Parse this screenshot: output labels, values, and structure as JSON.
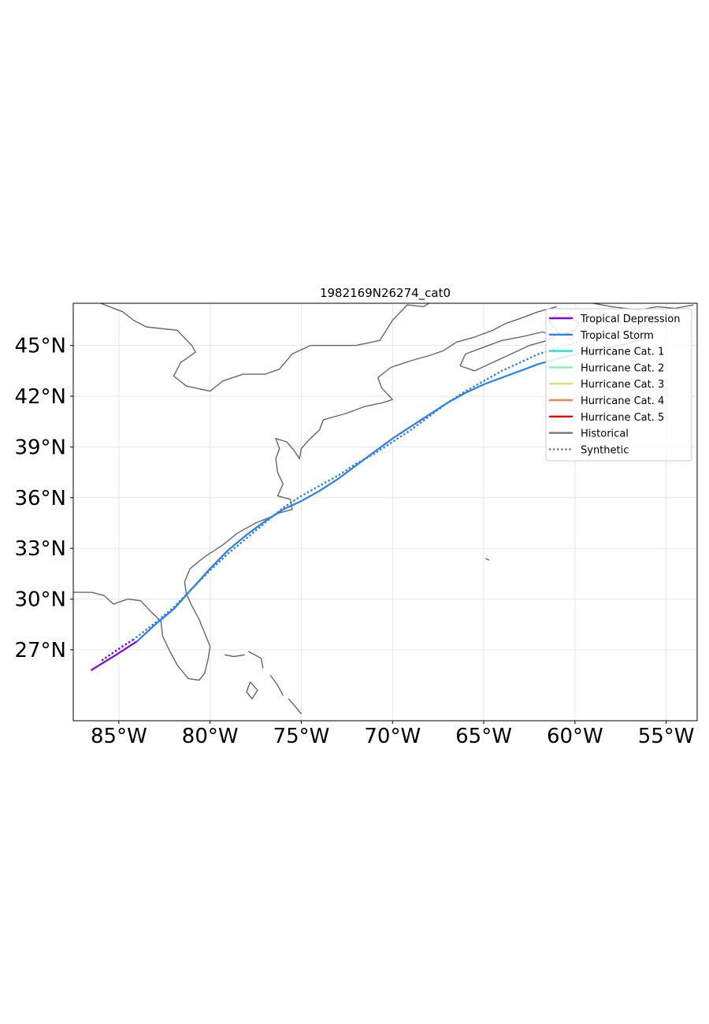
{
  "chart_data": {
    "type": "map-track",
    "title": "1982169N26274_cat0",
    "lon_range": [
      -87.5,
      -53.3
    ],
    "lat_range": [
      22.8,
      47.5
    ],
    "x_ticks": [
      {
        "lon": -85,
        "label": "85°W"
      },
      {
        "lon": -80,
        "label": "80°W"
      },
      {
        "lon": -75,
        "label": "75°W"
      },
      {
        "lon": -70,
        "label": "70°W"
      },
      {
        "lon": -65,
        "label": "65°W"
      },
      {
        "lon": -60,
        "label": "60°W"
      },
      {
        "lon": -55,
        "label": "55°W"
      }
    ],
    "y_ticks": [
      {
        "lat": 27,
        "label": "27°N"
      },
      {
        "lat": 30,
        "label": "30°N"
      },
      {
        "lat": 33,
        "label": "33°N"
      },
      {
        "lat": 36,
        "label": "36°N"
      },
      {
        "lat": 39,
        "label": "39°N"
      },
      {
        "lat": 42,
        "label": "42°N"
      },
      {
        "lat": 45,
        "label": "45°N"
      }
    ],
    "grid": true,
    "legend": {
      "position": "top-right",
      "entries": [
        {
          "label": "Tropical Depression",
          "color": "#8000f0",
          "style": "solid"
        },
        {
          "label": "Tropical Storm",
          "color": "#2a80f0",
          "style": "solid"
        },
        {
          "label": "Hurricane Cat. 1",
          "color": "#2ad6d6",
          "style": "solid"
        },
        {
          "label": "Hurricane Cat. 2",
          "color": "#86f0b8",
          "style": "solid"
        },
        {
          "label": "Hurricane Cat. 3",
          "color": "#d6e080",
          "style": "solid"
        },
        {
          "label": "Hurricane Cat. 4",
          "color": "#ff8040",
          "style": "solid"
        },
        {
          "label": "Hurricane Cat. 5",
          "color": "#f00000",
          "style": "solid"
        },
        {
          "label": "Historical",
          "color": "#777777",
          "style": "solid"
        },
        {
          "label": "Synthetic",
          "color": "#777777",
          "style": "dotted"
        }
      ]
    },
    "tracks": [
      {
        "kind": "historical",
        "segments": [
          {
            "category": "Tropical Depression",
            "color": "#8000f0",
            "points": [
              [
                -86.5,
                25.8
              ],
              [
                -85.3,
                26.6
              ],
              [
                -84.0,
                27.5
              ]
            ]
          },
          {
            "category": "Tropical Storm",
            "color": "#2a80f0",
            "points": [
              [
                -84.0,
                27.5
              ],
              [
                -83.0,
                28.5
              ],
              [
                -82.0,
                29.4
              ],
              [
                -81.0,
                30.6
              ],
              [
                -80.0,
                31.8
              ],
              [
                -79.0,
                32.9
              ],
              [
                -78.0,
                33.8
              ],
              [
                -77.0,
                34.6
              ],
              [
                -76.0,
                35.3
              ],
              [
                -75.0,
                35.8
              ],
              [
                -74.0,
                36.4
              ],
              [
                -73.0,
                37.1
              ],
              [
                -72.0,
                37.9
              ],
              [
                -71.0,
                38.7
              ],
              [
                -70.0,
                39.5
              ],
              [
                -69.0,
                40.2
              ],
              [
                -68.0,
                40.9
              ],
              [
                -67.0,
                41.6
              ],
              [
                -66.0,
                42.2
              ],
              [
                -65.0,
                42.7
              ],
              [
                -64.0,
                43.1
              ],
              [
                -63.0,
                43.5
              ],
              [
                -62.0,
                43.9
              ],
              [
                -61.0,
                44.2
              ],
              [
                -59.5,
                44.6
              ],
              [
                -57.5,
                45.0
              ],
              [
                -55.8,
                45.5
              ]
            ]
          }
        ]
      },
      {
        "kind": "synthetic",
        "segments": [
          {
            "category": "Tropical Depression",
            "color": "#8000f0",
            "points": [
              [
                -85.9,
                26.4
              ],
              [
                -84.8,
                27.2
              ],
              [
                -84.2,
                27.6
              ]
            ]
          },
          {
            "category": "Tropical Storm",
            "color": "#2a80f0",
            "points": [
              [
                -84.2,
                27.6
              ],
              [
                -83.0,
                28.6
              ],
              [
                -82.0,
                29.5
              ],
              [
                -81.0,
                30.6
              ],
              [
                -80.0,
                31.7
              ],
              [
                -79.0,
                32.7
              ],
              [
                -78.0,
                33.6
              ],
              [
                -77.0,
                34.5
              ],
              [
                -76.0,
                35.4
              ],
              [
                -75.0,
                36.1
              ],
              [
                -74.0,
                36.7
              ],
              [
                -73.0,
                37.3
              ],
              [
                -72.0,
                38.0
              ],
              [
                -71.0,
                38.6
              ],
              [
                -70.0,
                39.3
              ],
              [
                -69.0,
                40.0
              ],
              [
                -68.0,
                40.8
              ],
              [
                -67.0,
                41.6
              ],
              [
                -66.0,
                42.3
              ],
              [
                -65.0,
                42.9
              ],
              [
                -64.0,
                43.5
              ],
              [
                -63.0,
                44.0
              ],
              [
                -62.0,
                44.5
              ],
              [
                -60.5,
                45.0
              ],
              [
                -58.5,
                45.6
              ],
              [
                -56.5,
                46.1
              ],
              [
                -54.5,
                46.8
              ]
            ]
          }
        ]
      }
    ],
    "coastlines": [
      [
        [
          -87.5,
          30.4
        ],
        [
          -86.5,
          30.4
        ],
        [
          -85.8,
          30.2
        ],
        [
          -85.3,
          29.7
        ],
        [
          -84.5,
          30.0
        ],
        [
          -83.8,
          29.9
        ],
        [
          -83.2,
          29.2
        ],
        [
          -82.7,
          28.7
        ],
        [
          -82.6,
          27.8
        ],
        [
          -82.2,
          26.9
        ],
        [
          -81.8,
          26.1
        ],
        [
          -81.2,
          25.3
        ],
        [
          -80.6,
          25.2
        ],
        [
          -80.3,
          25.6
        ],
        [
          -80.1,
          26.5
        ],
        [
          -80.0,
          27.2
        ],
        [
          -80.3,
          28.0
        ],
        [
          -80.6,
          28.8
        ],
        [
          -81.0,
          29.6
        ],
        [
          -81.3,
          30.3
        ],
        [
          -81.4,
          31.0
        ],
        [
          -81.1,
          31.8
        ],
        [
          -80.3,
          32.5
        ],
        [
          -79.3,
          33.2
        ],
        [
          -78.5,
          33.9
        ],
        [
          -77.5,
          34.5
        ],
        [
          -76.8,
          34.8
        ],
        [
          -76.2,
          35.1
        ],
        [
          -75.5,
          35.3
        ],
        [
          -75.6,
          35.9
        ],
        [
          -76.3,
          36.1
        ],
        [
          -76.0,
          36.8
        ],
        [
          -76.3,
          37.5
        ],
        [
          -76.4,
          38.3
        ],
        [
          -76.2,
          38.9
        ],
        [
          -76.4,
          39.5
        ],
        [
          -75.8,
          39.3
        ],
        [
          -75.4,
          38.8
        ],
        [
          -75.1,
          38.3
        ],
        [
          -75.0,
          38.9
        ],
        [
          -74.6,
          39.4
        ],
        [
          -74.0,
          40.0
        ],
        [
          -73.8,
          40.6
        ],
        [
          -72.5,
          41.0
        ],
        [
          -71.5,
          41.4
        ],
        [
          -70.6,
          41.6
        ],
        [
          -70.0,
          41.8
        ],
        [
          -70.6,
          42.5
        ],
        [
          -70.8,
          43.1
        ],
        [
          -70.1,
          43.7
        ],
        [
          -69.0,
          44.1
        ],
        [
          -68.0,
          44.4
        ],
        [
          -67.2,
          44.7
        ],
        [
          -66.5,
          45.2
        ],
        [
          -65.5,
          45.5
        ],
        [
          -64.5,
          45.9
        ],
        [
          -63.8,
          46.3
        ],
        [
          -63.0,
          46.6
        ],
        [
          -62.0,
          47.0
        ],
        [
          -61.0,
          47.3
        ]
      ],
      [
        [
          -66.3,
          43.8
        ],
        [
          -65.5,
          43.5
        ],
        [
          -64.5,
          44.0
        ],
        [
          -63.5,
          44.5
        ],
        [
          -62.5,
          45.0
        ],
        [
          -61.5,
          45.3
        ],
        [
          -61.0,
          45.6
        ],
        [
          -61.8,
          45.8
        ],
        [
          -63.0,
          45.5
        ],
        [
          -64.0,
          45.3
        ],
        [
          -65.0,
          44.9
        ],
        [
          -66.0,
          44.5
        ],
        [
          -66.3,
          43.8
        ]
      ],
      [
        [
          -60.8,
          45.6
        ],
        [
          -60.0,
          45.9
        ],
        [
          -59.8,
          46.3
        ],
        [
          -60.4,
          46.9
        ],
        [
          -61.0,
          46.9
        ],
        [
          -61.4,
          46.4
        ],
        [
          -61.0,
          45.9
        ],
        [
          -60.8,
          45.6
        ]
      ],
      [
        [
          -59.0,
          47.5
        ],
        [
          -58.0,
          47.3
        ],
        [
          -56.5,
          47.1
        ],
        [
          -55.5,
          47.3
        ],
        [
          -54.5,
          47.2
        ],
        [
          -53.5,
          47.4
        ]
      ],
      [
        [
          -86.0,
          47.5
        ],
        [
          -84.8,
          47.0
        ],
        [
          -84.2,
          46.5
        ],
        [
          -83.5,
          46.1
        ],
        [
          -81.8,
          45.9
        ],
        [
          -81.0,
          45.0
        ],
        [
          -80.8,
          44.6
        ],
        [
          -81.6,
          44.0
        ],
        [
          -82.0,
          43.2
        ],
        [
          -81.3,
          42.6
        ],
        [
          -80.0,
          42.3
        ],
        [
          -79.3,
          42.9
        ],
        [
          -78.2,
          43.3
        ],
        [
          -77.0,
          43.3
        ],
        [
          -76.2,
          43.6
        ],
        [
          -75.5,
          44.5
        ],
        [
          -74.5,
          45.0
        ],
        [
          -72.0,
          45.0
        ],
        [
          -70.7,
          45.3
        ],
        [
          -70.0,
          46.5
        ],
        [
          -69.2,
          47.4
        ],
        [
          -68.3,
          47.3
        ],
        [
          -68.0,
          47.5
        ]
      ],
      [
        [
          -64.9,
          32.4
        ],
        [
          -64.7,
          32.3
        ]
      ],
      [
        [
          -79.2,
          26.7
        ],
        [
          -78.7,
          26.6
        ],
        [
          -78.1,
          26.7
        ]
      ],
      [
        [
          -77.9,
          26.9
        ],
        [
          -77.2,
          26.5
        ],
        [
          -77.1,
          25.9
        ]
      ],
      [
        [
          -77.8,
          25.1
        ],
        [
          -77.4,
          24.6
        ],
        [
          -77.7,
          24.1
        ],
        [
          -78.0,
          24.5
        ],
        [
          -77.8,
          25.1
        ]
      ],
      [
        [
          -76.7,
          25.5
        ],
        [
          -76.3,
          24.9
        ],
        [
          -76.0,
          24.3
        ]
      ],
      [
        [
          -75.7,
          24.1
        ],
        [
          -75.3,
          23.6
        ],
        [
          -75.0,
          23.2
        ]
      ]
    ]
  }
}
